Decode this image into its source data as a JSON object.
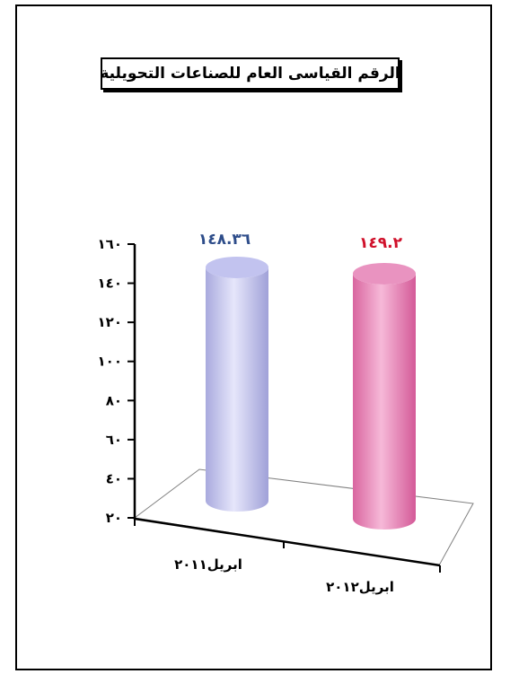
{
  "chart_data": {
    "type": "bar",
    "title": "الرقم القياسى العام للصناعات التحويلية",
    "categories": [
      "ابريل٢٠١١",
      "ابريل٢٠١٢"
    ],
    "values": [
      148.36,
      149.2
    ],
    "value_labels": [
      "١٤٨.٣٦",
      "١٤٩.٢"
    ],
    "ylim": [
      20,
      160
    ],
    "yticks": [
      20,
      40,
      60,
      80,
      100,
      120,
      140,
      160
    ],
    "ytick_labels": [
      "٢٠",
      "٤٠",
      "٦٠",
      "٨٠",
      "١٠٠",
      "١٢٠",
      "١٤٠",
      "١٦٠"
    ],
    "bar_colors": [
      "#c2c3ef",
      "#e993c0"
    ],
    "label_colors": [
      "#2e4d8a",
      "#d0112b"
    ],
    "grid": false,
    "legend": "none",
    "style": "3d-cylinder"
  }
}
